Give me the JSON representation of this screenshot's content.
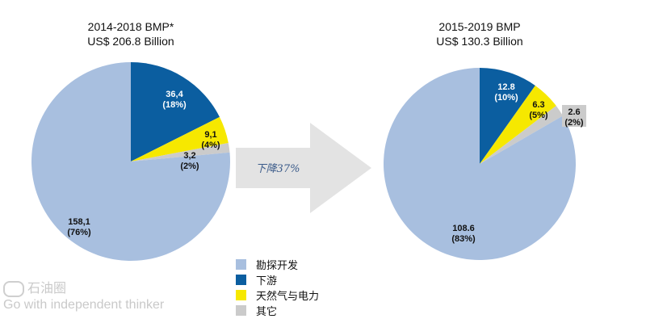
{
  "chart_data": [
    {
      "type": "pie",
      "title": "2014-2018 BMP*",
      "subtitle": "US$ 206.8 Billion",
      "slices": [
        {
          "key": "downstream",
          "value_label": "36,4",
          "pct_label": "(18%)",
          "value": 36.4,
          "pct": 18
        },
        {
          "key": "gas_power",
          "value_label": "9,1",
          "pct_label": "(4%)",
          "value": 9.1,
          "pct": 4
        },
        {
          "key": "other",
          "value_label": "3,2",
          "pct_label": "(2%)",
          "value": 3.2,
          "pct": 2
        },
        {
          "key": "ep",
          "value_label": "158,1",
          "pct_label": "(76%)",
          "value": 158.1,
          "pct": 76
        }
      ]
    },
    {
      "type": "pie",
      "title": "2015-2019 BMP",
      "subtitle": "US$ 130.3 Billion",
      "slices": [
        {
          "key": "downstream",
          "value_label": "12.8",
          "pct_label": "(10%)",
          "value": 12.8,
          "pct": 10
        },
        {
          "key": "gas_power",
          "value_label": "6.3",
          "pct_label": "(5%)",
          "value": 6.3,
          "pct": 5
        },
        {
          "key": "other",
          "value_label": "2.6",
          "pct_label": "(2%)",
          "value": 2.6,
          "pct": 2
        },
        {
          "key": "ep",
          "value_label": "108.6",
          "pct_label": "(83%)",
          "value": 108.6,
          "pct": 83
        }
      ]
    }
  ],
  "arrow": {
    "label": "下降37%",
    "color": "#e3e3e3"
  },
  "legend": [
    {
      "key": "ep",
      "label": "勘探开发",
      "color": "#a8bfdf"
    },
    {
      "key": "downstream",
      "label": "下游",
      "color": "#0b5ea0"
    },
    {
      "key": "gas_power",
      "label": "天然气与电力",
      "color": "#f6e800"
    },
    {
      "key": "other",
      "label": "其它",
      "color": "#cbcbcb"
    }
  ],
  "watermark": {
    "name": "石油圈",
    "tagline": "Go with independent thinker"
  }
}
